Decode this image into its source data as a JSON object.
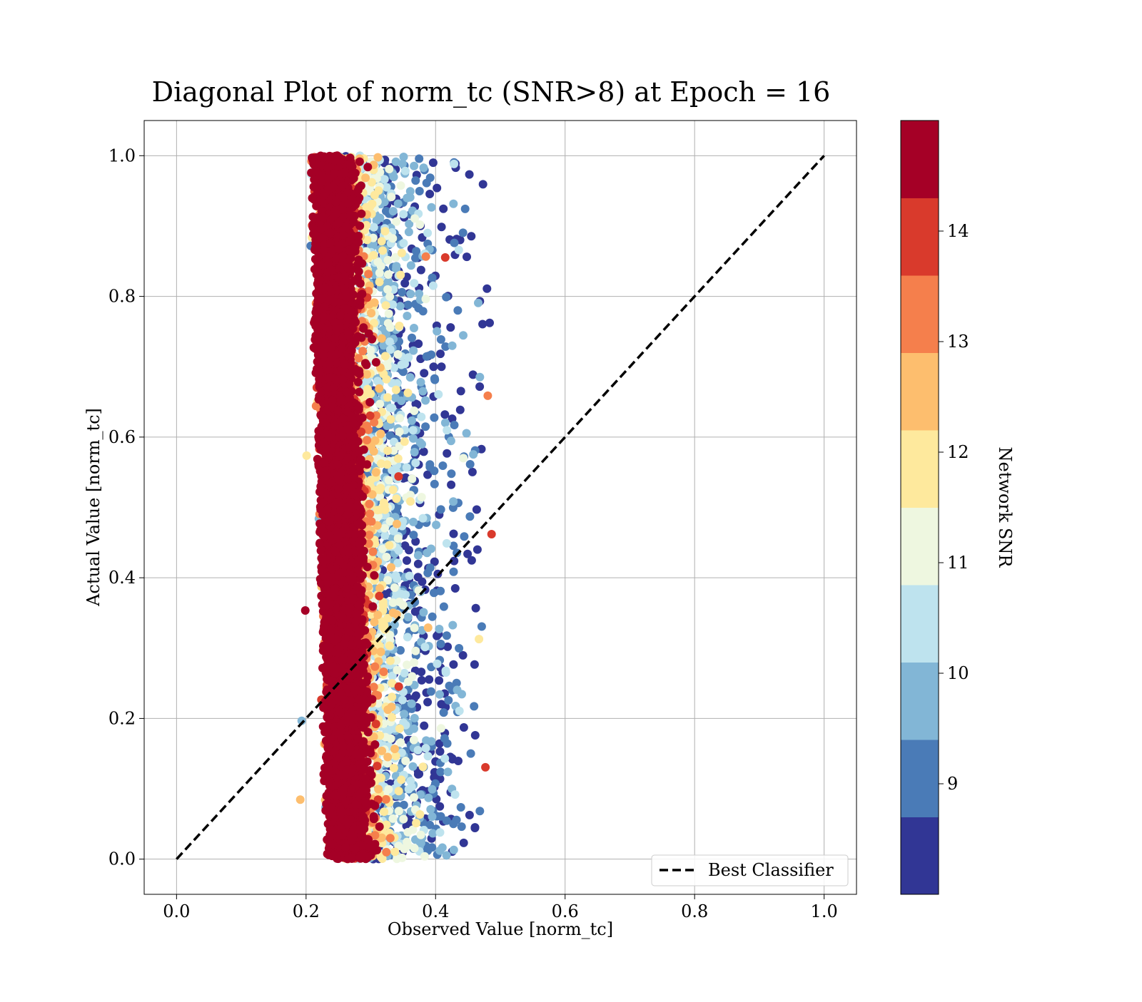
{
  "chart_data": {
    "type": "scatter",
    "title": "Diagonal Plot of norm_tc (SNR>8) at Epoch = 16",
    "xlabel": "Observed Value [norm_tc]",
    "ylabel": "Actual Value [norm_tc]",
    "xlim": [
      -0.05,
      1.05
    ],
    "ylim": [
      -0.05,
      1.05
    ],
    "xticks": [
      "0.0",
      "0.2",
      "0.4",
      "0.6",
      "0.8",
      "1.0"
    ],
    "yticks": [
      "0.0",
      "0.2",
      "0.4",
      "0.6",
      "0.8",
      "1.0"
    ],
    "grid": true,
    "legend": {
      "position": "lower-right",
      "entries": [
        "Best Classifier"
      ]
    },
    "series": [
      {
        "name": "Best Classifier",
        "type": "line",
        "style": "dashed",
        "color": "#000000",
        "x": [
          0.0,
          1.0
        ],
        "y": [
          0.0,
          1.0
        ]
      }
    ],
    "scatter_summary": {
      "x_range": [
        0.19,
        0.49
      ],
      "y_range": [
        0.0,
        1.0
      ],
      "high_snr_cluster_x": [
        0.2,
        0.31
      ],
      "colormap": "RdYlBu_r"
    },
    "colorbar": {
      "label": "Network SNR",
      "range": [
        8,
        15
      ],
      "ticks": [
        "9",
        "10",
        "11",
        "12",
        "13",
        "14"
      ],
      "tick_values": [
        9,
        10,
        11,
        12,
        13,
        14
      ],
      "bins": [
        {
          "from": 8.0,
          "to": 8.7,
          "color": "#313695"
        },
        {
          "from": 8.7,
          "to": 9.4,
          "color": "#4a7bb7"
        },
        {
          "from": 9.4,
          "to": 10.1,
          "color": "#82b6d6"
        },
        {
          "from": 10.1,
          "to": 10.8,
          "color": "#bee3ee"
        },
        {
          "from": 10.8,
          "to": 11.5,
          "color": "#eef7e0"
        },
        {
          "from": 11.5,
          "to": 12.2,
          "color": "#fee99d"
        },
        {
          "from": 12.2,
          "to": 12.9,
          "color": "#fdbe6e"
        },
        {
          "from": 12.9,
          "to": 13.6,
          "color": "#f57f4c"
        },
        {
          "from": 13.6,
          "to": 14.3,
          "color": "#d93a2c"
        },
        {
          "from": 14.3,
          "to": 15.0,
          "color": "#a50026"
        }
      ]
    }
  }
}
